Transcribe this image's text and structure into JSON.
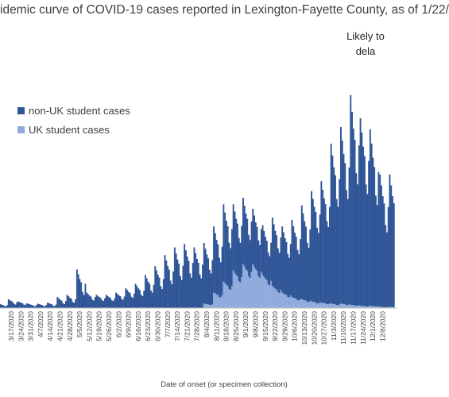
{
  "chart_data": {
    "type": "bar",
    "stacked": true,
    "title": "idemic curve of COVID-19 cases reported in Lexington-Fayette County, as of 1/22/",
    "annotation_lines": [
      "Likely to",
      "dela"
    ],
    "xlabel": "Date of onset (or specimen collection)",
    "tick_labels": [
      "3/17/2020",
      "3/24/2020",
      "3/31/2020",
      "4/7/2020",
      "4/14/2020",
      "4/21/2020",
      "4/28/2020",
      "5/5/2020",
      "5/12/2020",
      "5/19/2020",
      "5/26/2020",
      "6/2/2020",
      "6/9/2020",
      "6/16/2020",
      "6/23/2020",
      "6/30/2020",
      "7/7/2020",
      "7/14/2020",
      "7/21/2020",
      "7/28/2020",
      "8/4/2020",
      "8/11/2020",
      "8/18/2020",
      "8/25/2020",
      "9/1/2020",
      "9/8/2020",
      "9/15/2020",
      "9/22/2020",
      "9/29/2020",
      "10/6/2020",
      "10/13/2020",
      "10/20/2020",
      "10/27/2020",
      "11/3/2020",
      "11/10/2020",
      "11/17/2020",
      "11/24/2020",
      "12/1/2020",
      "12/8/2020"
    ],
    "legend": [
      {
        "name": "non-UK student cases",
        "color": "#2f5597"
      },
      {
        "name": "UK student cases",
        "color": "#8faadc"
      }
    ],
    "series": [
      {
        "name": "non-UK student cases",
        "color": "#2f5597",
        "weekly_peaks": [
          8,
          6,
          4,
          4,
          5,
          10,
          12,
          35,
          14,
          12,
          12,
          14,
          18,
          22,
          30,
          38,
          48,
          55,
          58,
          55,
          55,
          60,
          70,
          60,
          60,
          50,
          45,
          62,
          60,
          70,
          85,
          100,
          110,
          145,
          160,
          190,
          170,
          160,
          120
        ],
        "weekly_lows": [
          2,
          2,
          1,
          1,
          1,
          2,
          3,
          6,
          5,
          5,
          5,
          6,
          7,
          8,
          10,
          12,
          15,
          18,
          20,
          20,
          22,
          25,
          30,
          30,
          28,
          25,
          22,
          30,
          30,
          35,
          40,
          55,
          60,
          75,
          80,
          90,
          85,
          75,
          55
        ]
      },
      {
        "name": "UK student cases",
        "color": "#8faadc",
        "weekly_peaks": [
          0,
          0,
          0,
          0,
          0,
          0,
          0,
          0,
          0,
          0,
          0,
          0,
          0,
          0,
          0,
          0,
          0,
          0,
          0,
          0,
          4,
          14,
          24,
          34,
          40,
          40,
          30,
          20,
          14,
          10,
          8,
          6,
          5,
          4,
          4,
          3,
          2,
          2,
          1
        ]
      }
    ]
  }
}
